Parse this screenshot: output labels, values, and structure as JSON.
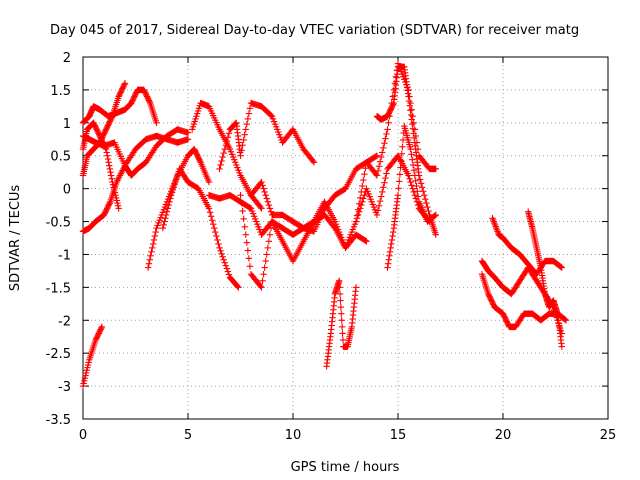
{
  "chart_data": {
    "type": "scatter",
    "title": "Day 045 of 2017, Sidereal Day-to-day VTEC variation (SDTVAR) for receiver matg",
    "xlabel": "GPS time / hours",
    "ylabel": "SDTVAR / TECUs",
    "xlim": [
      0,
      25
    ],
    "ylim": [
      -3.5,
      2
    ],
    "xticks": [
      0,
      5,
      10,
      15,
      20,
      25
    ],
    "yticks": [
      2,
      1.5,
      1,
      0.5,
      0,
      -0.5,
      -1,
      -1.5,
      -2,
      -2.5,
      -3,
      -3.5
    ],
    "xtick_labels": [
      "0",
      "5",
      "10",
      "15",
      "20",
      "25"
    ],
    "ytick_labels": [
      "2",
      "1.5",
      "1",
      "0.5",
      "0",
      "-0.5",
      "-1",
      "-1.5",
      "-2",
      "-2.5",
      "-3",
      "-3.5"
    ],
    "grid": true,
    "marker": "+",
    "color": "#ff0000",
    "series": [
      {
        "name": "s1",
        "x": [
          0.0,
          0.3,
          0.6,
          0.9
        ],
        "y": [
          -3.0,
          -2.6,
          -2.3,
          -2.1
        ]
      },
      {
        "name": "s2",
        "x": [
          0.0,
          0.2,
          0.5,
          0.8,
          1.1,
          1.4,
          1.7,
          2.0
        ],
        "y": [
          0.2,
          0.5,
          0.6,
          0.7,
          0.9,
          1.1,
          1.4,
          1.6
        ]
      },
      {
        "name": "s3",
        "x": [
          0.0,
          0.3,
          0.5,
          0.8,
          1.2,
          1.6,
          2.0,
          2.3,
          2.6,
          2.9,
          3.2,
          3.5
        ],
        "y": [
          1.0,
          1.1,
          1.25,
          1.2,
          1.1,
          1.15,
          1.2,
          1.3,
          1.5,
          1.5,
          1.3,
          1.0
        ]
      },
      {
        "name": "s4",
        "x": [
          0.0,
          0.2,
          0.5,
          0.8,
          1.1,
          1.4,
          1.7
        ],
        "y": [
          0.6,
          0.9,
          1.0,
          0.8,
          0.6,
          0.1,
          -0.3
        ]
      },
      {
        "name": "s5",
        "x": [
          0.0,
          0.3,
          0.6,
          1.0,
          1.3,
          1.6,
          2.0,
          2.5,
          3.0,
          3.5,
          4.0,
          4.5,
          5.0
        ],
        "y": [
          -0.65,
          -0.6,
          -0.5,
          -0.4,
          -0.2,
          0.1,
          0.35,
          0.6,
          0.75,
          0.8,
          0.75,
          0.7,
          0.75
        ]
      },
      {
        "name": "s6",
        "x": [
          0.0,
          0.3,
          0.6,
          1.0,
          1.5,
          2.0,
          2.3,
          2.6,
          3.0,
          3.5,
          4.0,
          4.5,
          5.0
        ],
        "y": [
          0.8,
          0.75,
          0.7,
          0.65,
          0.7,
          0.35,
          0.2,
          0.3,
          0.4,
          0.65,
          0.8,
          0.9,
          0.85
        ]
      },
      {
        "name": "s7",
        "x": [
          3.1,
          3.5,
          4.0,
          4.5,
          5.0,
          5.3,
          5.6,
          6.0
        ],
        "y": [
          -1.2,
          -0.6,
          -0.2,
          0.2,
          0.5,
          0.6,
          0.4,
          0.1
        ]
      },
      {
        "name": "s8",
        "x": [
          3.8,
          4.2,
          4.6,
          5.0,
          5.5,
          6.0,
          6.5,
          7.0,
          7.4
        ],
        "y": [
          -0.6,
          -0.1,
          0.3,
          0.1,
          0.0,
          -0.3,
          -0.9,
          -1.35,
          -1.5
        ]
      },
      {
        "name": "s9",
        "x": [
          5.2,
          5.6,
          6.0,
          6.5,
          7.0,
          7.5,
          8.0,
          8.5
        ],
        "y": [
          0.9,
          1.3,
          1.25,
          0.9,
          0.6,
          0.2,
          -0.1,
          -0.3
        ]
      },
      {
        "name": "s10",
        "x": [
          6.5,
          7.0,
          7.3,
          7.5,
          8.0,
          8.5,
          9.0,
          9.5,
          10.0,
          10.5,
          11.0
        ],
        "y": [
          0.3,
          0.9,
          1.0,
          0.5,
          1.3,
          1.25,
          1.1,
          0.7,
          0.9,
          0.6,
          0.4
        ]
      },
      {
        "name": "s11",
        "x": [
          6.0,
          6.5,
          7.0,
          7.5,
          8.0,
          8.5,
          9.0,
          9.5,
          10.0,
          10.5,
          11.0,
          11.5,
          12.0,
          12.5,
          13.0,
          13.5
        ],
        "y": [
          -0.1,
          -0.15,
          -0.1,
          -0.2,
          -0.3,
          -0.7,
          -0.5,
          -0.8,
          -1.1,
          -0.8,
          -0.5,
          -0.2,
          -0.5,
          -0.9,
          -0.7,
          -0.8
        ]
      },
      {
        "name": "s12",
        "x": [
          7.5,
          8.0,
          8.5,
          9.0,
          9.5,
          10.0,
          10.5,
          11.0,
          11.5,
          12.0,
          12.5,
          13.0,
          13.5,
          14.0
        ],
        "y": [
          -0.1,
          -1.3,
          -1.5,
          -0.5,
          -0.6,
          -0.7,
          -0.6,
          -0.65,
          -0.3,
          -0.1,
          0.0,
          0.3,
          0.4,
          0.5
        ]
      },
      {
        "name": "s13",
        "x": [
          8.0,
          8.5,
          9.0,
          9.5,
          10.0,
          10.5,
          11.0,
          11.5,
          12.0,
          12.5,
          13.0,
          13.5,
          14.0,
          14.5,
          15.0,
          15.5,
          16.0,
          16.5
        ],
        "y": [
          -0.1,
          0.1,
          -0.4,
          -0.4,
          -0.5,
          -0.6,
          -0.5,
          -0.4,
          -0.6,
          -0.9,
          -0.5,
          0.0,
          -0.4,
          0.3,
          0.5,
          0.2,
          -0.3,
          -0.5
        ]
      },
      {
        "name": "s14",
        "x": [
          11.6,
          11.8,
          12.0,
          12.2,
          12.4,
          12.6,
          12.8,
          13.0
        ],
        "y": [
          -2.7,
          -2.2,
          -1.6,
          -1.4,
          -2.4,
          -2.4,
          -2.1,
          -1.5
        ]
      },
      {
        "name": "s15",
        "x": [
          13.0,
          13.5,
          14.0,
          14.5,
          15.0,
          15.5,
          16.0,
          16.5,
          16.8
        ],
        "y": [
          -0.5,
          0.4,
          0.2,
          0.9,
          1.9,
          1.5,
          0.5,
          0.3,
          0.3
        ]
      },
      {
        "name": "s16",
        "x": [
          14.0,
          14.2,
          14.5,
          14.8,
          15.0,
          15.3,
          15.5,
          15.8,
          16.0,
          16.5,
          16.8
        ],
        "y": [
          1.1,
          1.05,
          1.1,
          1.3,
          1.85,
          1.85,
          1.4,
          0.7,
          0.2,
          -0.4,
          -0.7
        ]
      },
      {
        "name": "s17",
        "x": [
          14.5,
          14.8,
          15.0,
          15.3,
          15.6,
          16.0,
          16.4,
          16.8
        ],
        "y": [
          -1.2,
          -0.6,
          -0.1,
          0.95,
          0.6,
          -0.2,
          -0.5,
          -0.4
        ]
      },
      {
        "name": "s18",
        "x": [
          19.0,
          19.3,
          19.6,
          20.0,
          20.3,
          20.6,
          21.0,
          21.4,
          21.8,
          22.2,
          22.6,
          23.0
        ],
        "y": [
          -1.3,
          -1.6,
          -1.8,
          -1.9,
          -2.1,
          -2.1,
          -1.9,
          -1.9,
          -2.0,
          -1.9,
          -1.9,
          -2.0
        ]
      },
      {
        "name": "s19",
        "x": [
          19.5,
          19.8,
          20.0,
          20.4,
          20.8,
          21.2,
          21.6,
          22.0,
          22.4,
          22.8
        ],
        "y": [
          -0.45,
          -0.7,
          -0.75,
          -0.9,
          -1.0,
          -1.15,
          -1.3,
          -1.1,
          -1.1,
          -1.2
        ]
      },
      {
        "name": "s20",
        "x": [
          19.0,
          19.3,
          19.6,
          20.0,
          20.4,
          20.8,
          21.2,
          21.6,
          22.0,
          22.4,
          22.8
        ],
        "y": [
          -1.1,
          -1.25,
          -1.35,
          -1.5,
          -1.6,
          -1.4,
          -1.2,
          -1.4,
          -1.6,
          -1.8,
          -2.2
        ]
      },
      {
        "name": "s21",
        "x": [
          21.2,
          21.4,
          21.6,
          21.8,
          22.0,
          22.2,
          22.4,
          22.6,
          22.8
        ],
        "y": [
          -0.35,
          -0.6,
          -0.9,
          -1.2,
          -1.6,
          -1.8,
          -1.7,
          -1.9,
          -2.4
        ]
      }
    ]
  }
}
